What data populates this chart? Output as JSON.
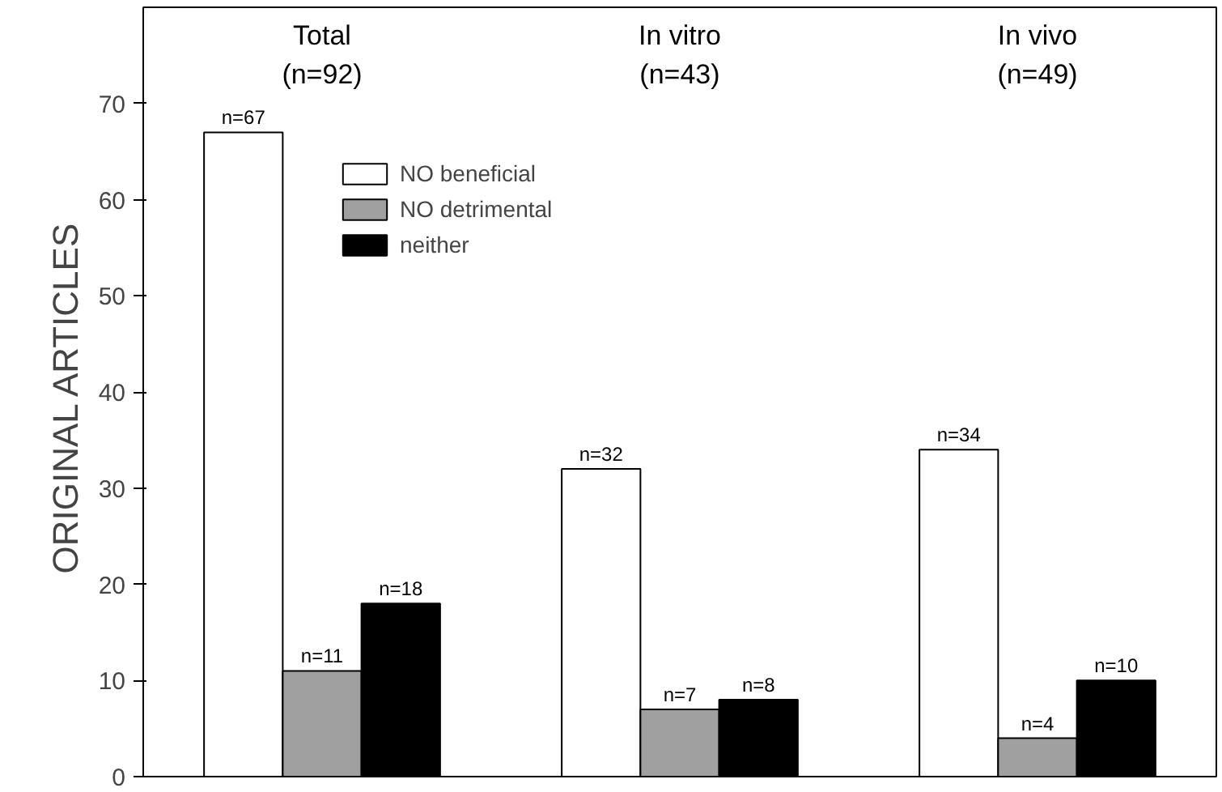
{
  "chart_data": {
    "type": "bar",
    "ylabel": "ORIGINAL  ARTICLES",
    "categories": [
      "Total\n(n=92)",
      "In vitro\n(n=43)",
      "In vivo\n(n=49)"
    ],
    "series": [
      {
        "name": "NO beneficial",
        "color": "#ffffff",
        "values": [
          67,
          32,
          34
        ],
        "value_labels": [
          "n=67",
          "n=32",
          "n=34"
        ]
      },
      {
        "name": "NO detrimental",
        "color": "#a0a0a0",
        "values": [
          11,
          7,
          4
        ],
        "value_labels": [
          "n=11",
          "n=7",
          "n=4"
        ]
      },
      {
        "name": "neither",
        "color": "#000000",
        "values": [
          18,
          8,
          10
        ],
        "value_labels": [
          "n=18",
          "n=8",
          "n=10"
        ]
      }
    ],
    "ylim": [
      0,
      80
    ],
    "yticks": [
      0,
      10,
      20,
      30,
      40,
      50,
      60,
      70
    ],
    "grid": false,
    "legend": "top left",
    "tick_labels": "y"
  }
}
